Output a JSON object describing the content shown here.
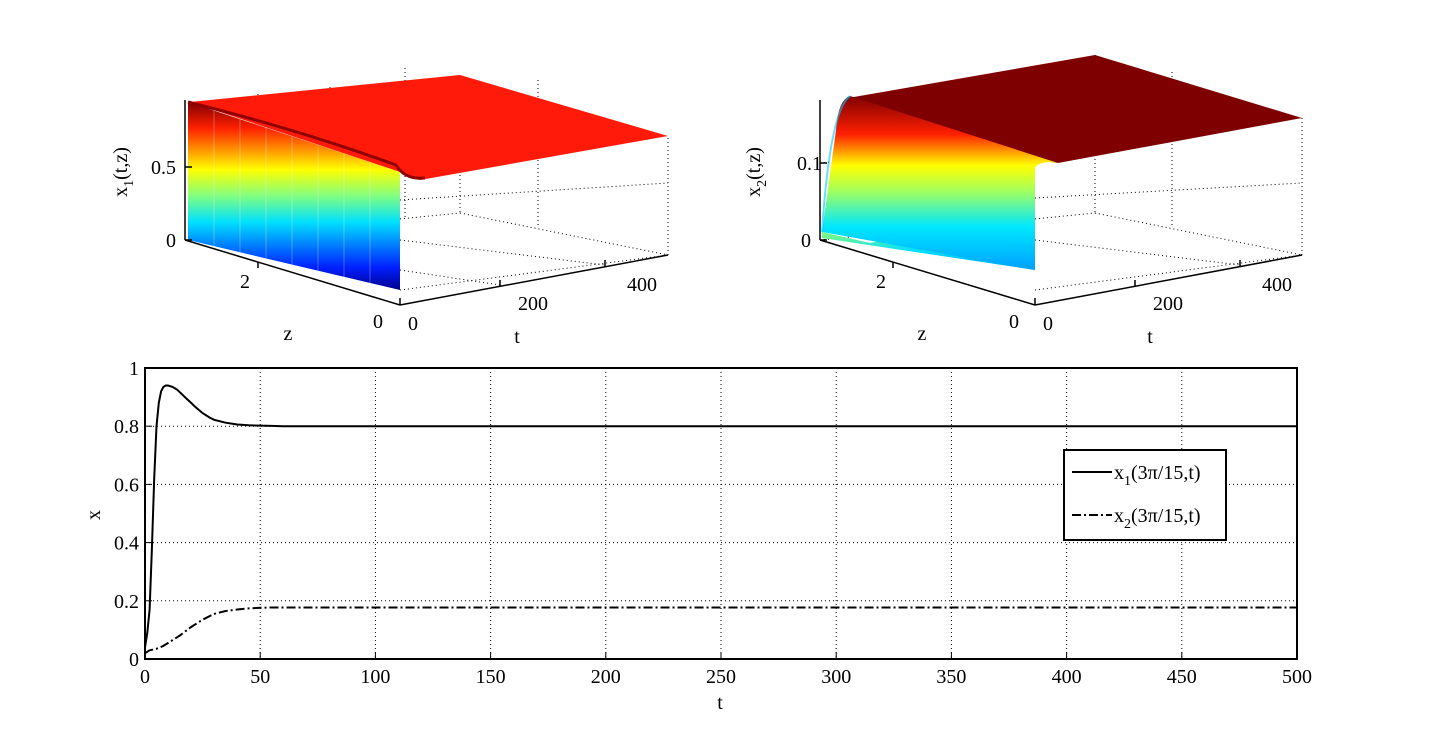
{
  "colors": {
    "x1_surface_top": "#ff1a0a",
    "x2_surface_top": "#7f0000",
    "line": "#000000",
    "grid": "#000000",
    "background": "#ffffff"
  },
  "chart_data": [
    {
      "type": "surface",
      "zlabel_main": "x",
      "zlabel_sub": "1",
      "zlabel_args": "(t,z)",
      "xlabel": "z",
      "ylabel": "t",
      "z_ticks": [
        "0",
        "0.5"
      ],
      "zspace_ticks": [
        "0",
        "2"
      ],
      "t_ticks": [
        "0",
        "200",
        "400"
      ],
      "grid": true,
      "colormap": "jet"
    },
    {
      "type": "surface",
      "zlabel_main": "x",
      "zlabel_sub": "2",
      "zlabel_args": "(t,z)",
      "xlabel": "z",
      "ylabel": "t",
      "z_ticks": [
        "0",
        "0.1"
      ],
      "zspace_ticks": [
        "0",
        "2"
      ],
      "t_ticks": [
        "0",
        "200",
        "400"
      ],
      "grid": true,
      "colormap": "jet"
    },
    {
      "type": "line",
      "xlabel": "t",
      "ylabel": "x",
      "xlim": [
        0,
        500
      ],
      "ylim": [
        0,
        1
      ],
      "xticks": [
        0,
        50,
        100,
        150,
        200,
        250,
        300,
        350,
        400,
        450,
        500
      ],
      "yticks": [
        0,
        0.2,
        0.4,
        0.6,
        0.8,
        1
      ],
      "ytick_labels": [
        "0",
        "0.2",
        "0.4",
        "0.6",
        "0.8",
        "1"
      ],
      "grid": true,
      "legend_position": "right",
      "series": [
        {
          "main": "x",
          "sub": "1",
          "args": "(3π/15,t)",
          "style": "solid",
          "x": [
            0,
            1,
            2,
            3,
            4,
            5,
            6,
            7,
            8,
            9,
            10,
            12,
            14,
            16,
            18,
            20,
            22,
            25,
            28,
            30,
            35,
            40,
            45,
            50,
            55,
            60,
            70,
            80,
            100,
            150,
            200,
            300,
            400,
            500
          ],
          "y": [
            0.04,
            0.09,
            0.17,
            0.38,
            0.62,
            0.8,
            0.88,
            0.92,
            0.935,
            0.94,
            0.94,
            0.935,
            0.925,
            0.91,
            0.895,
            0.88,
            0.865,
            0.845,
            0.83,
            0.822,
            0.812,
            0.806,
            0.803,
            0.802,
            0.801,
            0.8,
            0.8,
            0.8,
            0.8,
            0.8,
            0.8,
            0.8,
            0.8,
            0.8
          ]
        },
        {
          "main": "x",
          "sub": "2",
          "args": "(3π/15,t)",
          "style": "dashdot",
          "x": [
            0,
            2,
            5,
            8,
            10,
            15,
            20,
            25,
            30,
            35,
            40,
            45,
            50,
            55,
            60,
            80,
            100,
            150,
            200,
            300,
            400,
            500
          ],
          "y": [
            0.02,
            0.03,
            0.035,
            0.045,
            0.055,
            0.08,
            0.11,
            0.135,
            0.155,
            0.165,
            0.17,
            0.174,
            0.176,
            0.177,
            0.177,
            0.177,
            0.177,
            0.177,
            0.177,
            0.177,
            0.177,
            0.177
          ]
        }
      ]
    }
  ]
}
